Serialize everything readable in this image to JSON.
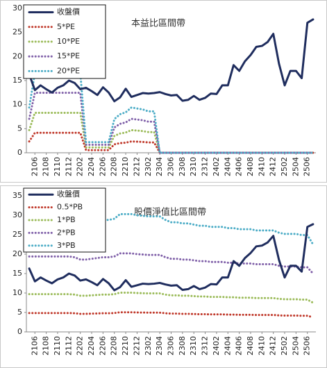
{
  "chart_data": [
    {
      "type": "line",
      "title": "本益比區間帶",
      "legend": "upper left",
      "grid": false,
      "ylim": [
        0,
        30
      ],
      "yticks": [
        0,
        5,
        10,
        15,
        20,
        25,
        30
      ],
      "categories": [
        null,
        "2106",
        null,
        "2108",
        null,
        "2110",
        null,
        "2112",
        null,
        "2202",
        null,
        "2204",
        null,
        "2206",
        null,
        "2208",
        null,
        "2210",
        null,
        "2212",
        null,
        "2302",
        null,
        "2304",
        null,
        "2306",
        null,
        "2308",
        null,
        "2310",
        null,
        "2312",
        null,
        "2402",
        null,
        "2404",
        null,
        "2406",
        null,
        "2408",
        null,
        "2410",
        null,
        "2412",
        null,
        "2502",
        null,
        "2504",
        null,
        "2506",
        null
      ],
      "series": [
        {
          "name": "收盤價",
          "color": "#1f2d5e",
          "style": "solid",
          "values": [
            16.3,
            13,
            14,
            13.2,
            12.5,
            13.5,
            14,
            15,
            14.5,
            13.2,
            13.5,
            12.8,
            12,
            13.6,
            12.5,
            10.7,
            11.5,
            13.3,
            11.6,
            12,
            12.4,
            12.3,
            12.4,
            12.6,
            12.2,
            11.9,
            12,
            10.8,
            11,
            11.8,
            11,
            11.4,
            12.3,
            12.2,
            14,
            14,
            18.2,
            17,
            19,
            20.3,
            22,
            22.2,
            23,
            24.7,
            18.5,
            14,
            17,
            17,
            15.5,
            27,
            27.7
          ]
        },
        {
          "name": "5*PE",
          "color": "#c0392b",
          "style": "dotted",
          "values": [
            2.35,
            4.15,
            4.15,
            4.15,
            4.15,
            4.15,
            4.15,
            4.15,
            4.15,
            4.15,
            0.55,
            0.55,
            0.55,
            0.55,
            0.55,
            1.75,
            2,
            2.1,
            2.35,
            2.3,
            2.25,
            2.15,
            2.15,
            0,
            0,
            0,
            0,
            0,
            0,
            0,
            0,
            0,
            0,
            0,
            0,
            0,
            0,
            0,
            0,
            0,
            0,
            0,
            0,
            0,
            0,
            0,
            0,
            0,
            0,
            0,
            0
          ]
        },
        {
          "name": "10*PE",
          "color": "#9bbb59",
          "style": "dotted",
          "values": [
            4.7,
            8.3,
            8.3,
            8.3,
            8.3,
            8.3,
            8.3,
            8.3,
            8.3,
            8.3,
            1.1,
            1.1,
            1.1,
            1.1,
            1.1,
            3.5,
            4,
            4.2,
            4.7,
            4.6,
            4.5,
            4.3,
            4.3,
            0,
            0,
            0,
            0,
            0,
            0,
            0,
            0,
            0,
            0,
            0,
            0,
            0,
            0,
            0,
            0,
            0,
            0,
            0,
            0,
            0,
            0,
            0,
            0,
            0,
            0,
            0,
            0
          ]
        },
        {
          "name": "15*PE",
          "color": "#7f5fa8",
          "style": "dotted",
          "values": [
            7.05,
            12.45,
            12.45,
            12.45,
            12.45,
            12.45,
            12.45,
            12.45,
            12.45,
            12.45,
            1.65,
            1.65,
            1.65,
            1.65,
            1.65,
            5.25,
            6,
            6.3,
            7.05,
            6.9,
            6.75,
            6.45,
            6.45,
            0,
            0,
            0,
            0,
            0,
            0,
            0,
            0,
            0,
            0,
            0,
            0,
            0,
            0,
            0,
            0,
            0,
            0,
            0,
            0,
            0,
            0,
            0,
            0,
            0,
            0,
            0,
            0
          ]
        },
        {
          "name": "20*PE",
          "color": "#4bacc6",
          "style": "dotted",
          "values": [
            9.4,
            16.6,
            16.6,
            16.6,
            16.6,
            16.6,
            16.6,
            16.6,
            16.6,
            16.6,
            2.2,
            2.2,
            2.2,
            2.2,
            2.2,
            7,
            8,
            8.4,
            9.4,
            9.2,
            9,
            8.6,
            8.6,
            0,
            0,
            0,
            0,
            0,
            0,
            0,
            0,
            0,
            0,
            0,
            0,
            0,
            0,
            0,
            0,
            0,
            0,
            0,
            0,
            0,
            0,
            0,
            0,
            0,
            0,
            0,
            0
          ]
        }
      ]
    },
    {
      "type": "line",
      "title": "股價淨值比區間帶",
      "legend": "upper left",
      "grid": false,
      "ylim": [
        0,
        35
      ],
      "yticks": [
        0,
        5,
        10,
        15,
        20,
        25,
        30,
        35
      ],
      "categories": [
        null,
        "2106",
        null,
        "2108",
        null,
        "2110",
        null,
        "2112",
        null,
        "2202",
        null,
        "2204",
        null,
        "2206",
        null,
        "2208",
        null,
        "2210",
        null,
        "2212",
        null,
        "2302",
        null,
        "2304",
        null,
        "2306",
        null,
        "2308",
        null,
        "2310",
        null,
        "2312",
        null,
        "2402",
        null,
        "2404",
        null,
        "2406",
        null,
        "2408",
        null,
        "2410",
        null,
        "2412",
        null,
        "2502",
        null,
        "2504",
        null,
        "2506",
        null
      ],
      "series": [
        {
          "name": "收盤價",
          "color": "#1f2d5e",
          "style": "solid",
          "values": [
            16.3,
            13,
            14,
            13.2,
            12.5,
            13.5,
            14,
            15,
            14.5,
            13.2,
            13.5,
            12.8,
            12,
            13.6,
            12.5,
            10.7,
            11.5,
            13.3,
            11.6,
            12,
            12.4,
            12.3,
            12.4,
            12.6,
            12.2,
            11.9,
            12,
            10.8,
            11,
            11.8,
            11,
            11.4,
            12.3,
            12.2,
            14,
            14,
            18.2,
            17,
            19,
            20.3,
            22,
            22.2,
            23,
            24.7,
            18.5,
            14,
            17,
            17,
            15.5,
            27,
            27.7
          ]
        },
        {
          "name": "0.5*PB",
          "color": "#c0392b",
          "style": "dotted",
          "values": [
            4.85,
            4.85,
            4.85,
            4.85,
            4.85,
            4.85,
            4.85,
            4.85,
            4.8,
            4.65,
            4.65,
            4.7,
            4.75,
            4.8,
            4.8,
            4.85,
            5.05,
            5.05,
            5.05,
            5,
            4.98,
            4.95,
            4.95,
            4.95,
            4.8,
            4.7,
            4.7,
            4.65,
            4.65,
            4.6,
            4.55,
            4.55,
            4.5,
            4.5,
            4.5,
            4.45,
            4.45,
            4.4,
            4.4,
            4.4,
            4.35,
            4.35,
            4.35,
            4.35,
            4.25,
            4.2,
            4.2,
            4.2,
            4.15,
            4.15,
            3.75
          ]
        },
        {
          "name": "1*PB",
          "color": "#9bbb59",
          "style": "dotted",
          "values": [
            9.7,
            9.7,
            9.7,
            9.7,
            9.7,
            9.7,
            9.7,
            9.7,
            9.6,
            9.3,
            9.3,
            9.4,
            9.5,
            9.6,
            9.6,
            9.7,
            10.1,
            10.1,
            10.1,
            10,
            9.95,
            9.9,
            9.9,
            9.9,
            9.6,
            9.4,
            9.4,
            9.3,
            9.3,
            9.2,
            9.1,
            9.1,
            9,
            9,
            9,
            8.9,
            8.9,
            8.8,
            8.8,
            8.8,
            8.7,
            8.7,
            8.7,
            8.7,
            8.5,
            8.4,
            8.4,
            8.4,
            8.3,
            8.3,
            7.5
          ]
        },
        {
          "name": "2*PB",
          "color": "#7f5fa8",
          "style": "dotted",
          "values": [
            19.4,
            19.4,
            19.4,
            19.4,
            19.4,
            19.4,
            19.4,
            19.4,
            19.2,
            18.6,
            18.6,
            18.8,
            19,
            19.2,
            19.2,
            19.4,
            20.2,
            20.2,
            20.2,
            20,
            19.9,
            19.8,
            19.8,
            19.8,
            19.2,
            18.8,
            18.8,
            18.6,
            18.6,
            18.4,
            18.2,
            18.2,
            18,
            18,
            18,
            17.8,
            17.8,
            17.6,
            17.6,
            17.6,
            17.4,
            17.4,
            17.4,
            17.4,
            17,
            16.8,
            16.8,
            16.8,
            16.6,
            16.6,
            15
          ]
        },
        {
          "name": "3*PB",
          "color": "#4bacc6",
          "style": "dotted",
          "values": [
            29.1,
            29.1,
            29.1,
            29.1,
            29.1,
            29.1,
            29.1,
            29.1,
            28.8,
            27.9,
            27.9,
            28.2,
            28.5,
            28.8,
            28.8,
            29.1,
            30.3,
            30.3,
            30.3,
            30,
            29.85,
            29.7,
            29.7,
            29.7,
            28.8,
            28.2,
            28.2,
            27.9,
            27.9,
            27.6,
            27.3,
            27.3,
            27,
            27,
            27,
            26.7,
            26.7,
            26.4,
            26.4,
            26.4,
            26.1,
            26.1,
            26.1,
            26.1,
            25.5,
            25.2,
            25.2,
            25.2,
            24.9,
            24.9,
            22.5
          ]
        }
      ]
    }
  ]
}
